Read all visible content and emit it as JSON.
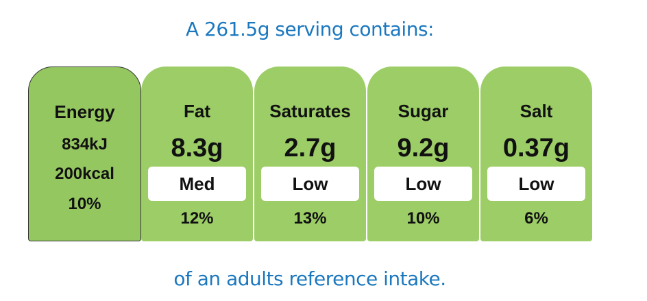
{
  "header": {
    "title": "A 261.5g serving contains:"
  },
  "energy": {
    "label": "Energy",
    "kj": "834kJ",
    "kcal": "200kcal",
    "percent": "10%"
  },
  "nutrients": [
    {
      "name": "Fat",
      "amount": "8.3g",
      "level": "Med",
      "percent": "12%"
    },
    {
      "name": "Saturates",
      "amount": "2.7g",
      "level": "Low",
      "percent": "13%"
    },
    {
      "name": "Sugar",
      "amount": "9.2g",
      "level": "Low",
      "percent": "10%"
    },
    {
      "name": "Salt",
      "amount": "0.37g",
      "level": "Low",
      "percent": "6%"
    }
  ],
  "footer": {
    "text": "of an adults reference intake."
  }
}
